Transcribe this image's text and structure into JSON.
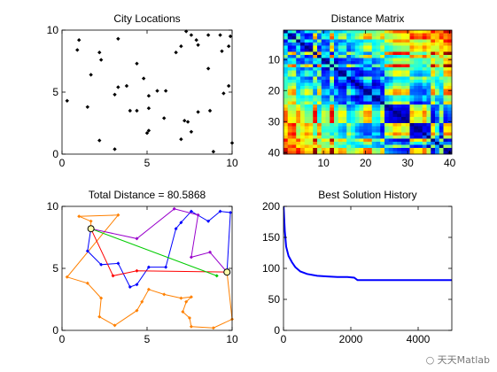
{
  "chart_data": [
    {
      "type": "scatter",
      "title": "City Locations",
      "xlim": [
        0,
        10
      ],
      "ylim": [
        0,
        10
      ],
      "xticks": [
        "0",
        "5",
        "10"
      ],
      "yticks": [
        "0",
        "5",
        "10"
      ],
      "marker_color": "#000000",
      "points": [
        [
          0.3,
          4.3
        ],
        [
          0.9,
          8.4
        ],
        [
          1.0,
          9.2
        ],
        [
          1.5,
          3.8
        ],
        [
          1.7,
          6.4
        ],
        [
          2.2,
          8.2
        ],
        [
          2.3,
          7.6
        ],
        [
          2.2,
          1.1
        ],
        [
          3.3,
          9.3
        ],
        [
          3.1,
          4.8
        ],
        [
          3.3,
          5.4
        ],
        [
          3.1,
          0.4
        ],
        [
          3.8,
          5.5
        ],
        [
          4.0,
          3.5
        ],
        [
          4.4,
          3.5
        ],
        [
          4.4,
          7.3
        ],
        [
          4.8,
          6.1
        ],
        [
          5.1,
          4.7
        ],
        [
          5.1,
          3.7
        ],
        [
          5.1,
          1.9
        ],
        [
          5.0,
          1.7
        ],
        [
          5.6,
          5.1
        ],
        [
          6.1,
          5.1
        ],
        [
          6.0,
          2.9
        ],
        [
          6.7,
          8.2
        ],
        [
          7.0,
          8.7
        ],
        [
          7.3,
          9.9
        ],
        [
          7.6,
          9.6
        ],
        [
          8.0,
          8.8
        ],
        [
          7.9,
          9.2
        ],
        [
          7.6,
          1.8
        ],
        [
          7.4,
          2.6
        ],
        [
          7.2,
          2.7
        ],
        [
          7.0,
          1.2
        ],
        [
          8.0,
          3.4
        ],
        [
          8.6,
          9.6
        ],
        [
          8.6,
          6.9
        ],
        [
          8.7,
          3.5
        ],
        [
          9.3,
          9.6
        ],
        [
          9.9,
          9.5
        ],
        [
          9.8,
          8.7
        ],
        [
          9.4,
          8.3
        ],
        [
          9.8,
          5.5
        ],
        [
          9.5,
          4.9
        ],
        [
          10.0,
          0.9
        ],
        [
          8.9,
          0.2
        ]
      ]
    },
    {
      "type": "heatmap",
      "title": "Distance Matrix",
      "xlim": [
        0.5,
        40.5
      ],
      "ylim": [
        0.5,
        40.5
      ],
      "xticks": [
        "10",
        "20",
        "30",
        "40"
      ],
      "yticks": [
        "10",
        "20",
        "30",
        "40"
      ],
      "colormap": "jet"
    },
    {
      "type": "line",
      "title": "Total Distance = 80.5868",
      "xlim": [
        0,
        10
      ],
      "ylim": [
        0,
        10
      ],
      "xticks": [
        "0",
        "5",
        "10"
      ],
      "yticks": [
        "0",
        "5",
        "10"
      ],
      "endpoints": [
        [
          1.7,
          8.2
        ],
        [
          9.7,
          4.7
        ]
      ],
      "series": [
        {
          "color": "#ff8000",
          "values": [
            [
              1.7,
              8.2
            ],
            [
              1.7,
              8.8
            ],
            [
              1.0,
              9.2
            ],
            [
              3.3,
              9.3
            ],
            [
              0.3,
              4.3
            ],
            [
              1.5,
              3.8
            ],
            [
              2.3,
              2.6
            ],
            [
              2.2,
              1.1
            ],
            [
              3.1,
              0.4
            ],
            [
              4.4,
              1.6
            ],
            [
              4.7,
              2.3
            ],
            [
              5.1,
              3.3
            ],
            [
              6.0,
              2.9
            ],
            [
              7.0,
              2.6
            ],
            [
              7.6,
              2.7
            ],
            [
              7.3,
              2.3
            ],
            [
              7.1,
              1.5
            ],
            [
              7.5,
              1.0
            ],
            [
              7.6,
              0.3
            ],
            [
              8.9,
              0.2
            ],
            [
              10.0,
              0.9
            ],
            [
              9.7,
              4.7
            ]
          ]
        },
        {
          "color": "#0000ff",
          "values": [
            [
              1.7,
              8.2
            ],
            [
              1.5,
              6.4
            ],
            [
              2.3,
              5.3
            ],
            [
              3.3,
              5.4
            ],
            [
              4.0,
              3.5
            ],
            [
              4.4,
              3.7
            ],
            [
              5.1,
              5.1
            ],
            [
              6.1,
              5.1
            ],
            [
              6.7,
              8.2
            ],
            [
              7.0,
              8.7
            ],
            [
              7.6,
              9.6
            ],
            [
              8.6,
              8.8
            ],
            [
              9.3,
              9.6
            ],
            [
              9.9,
              9.5
            ],
            [
              9.7,
              4.7
            ]
          ]
        },
        {
          "color": "#9900cc",
          "values": [
            [
              1.7,
              8.2
            ],
            [
              4.4,
              7.4
            ],
            [
              6.6,
              9.8
            ],
            [
              8.0,
              9.3
            ],
            [
              7.6,
              5.9
            ],
            [
              8.7,
              6.3
            ],
            [
              9.7,
              4.7
            ]
          ]
        },
        {
          "color": "#ff0000",
          "values": [
            [
              1.7,
              8.2
            ],
            [
              3.0,
              4.4
            ],
            [
              4.4,
              4.8
            ],
            [
              9.7,
              4.7
            ]
          ]
        },
        {
          "color": "#00cc00",
          "values": [
            [
              1.7,
              8.2
            ],
            [
              9.1,
              4.4
            ]
          ]
        }
      ]
    },
    {
      "type": "line",
      "title": "Best Solution History",
      "xlim": [
        0,
        5000
      ],
      "ylim": [
        0,
        200
      ],
      "xticks": [
        "0",
        "2000",
        "4000"
      ],
      "yticks": [
        "0",
        "50",
        "100",
        "150",
        "200"
      ],
      "series": [
        {
          "color": "#0000ff",
          "values": [
            [
              0,
              205
            ],
            [
              20,
              180
            ],
            [
              40,
              160
            ],
            [
              80,
              135
            ],
            [
              150,
              120
            ],
            [
              250,
              110
            ],
            [
              350,
              102
            ],
            [
              500,
              95
            ],
            [
              700,
              91
            ],
            [
              1000,
              88
            ],
            [
              1300,
              87
            ],
            [
              1600,
              86
            ],
            [
              1900,
              86
            ],
            [
              2100,
              85
            ],
            [
              2200,
              81
            ],
            [
              3000,
              81
            ],
            [
              4000,
              81
            ],
            [
              5000,
              81
            ]
          ]
        }
      ]
    }
  ],
  "watermark": "天天Matlab"
}
